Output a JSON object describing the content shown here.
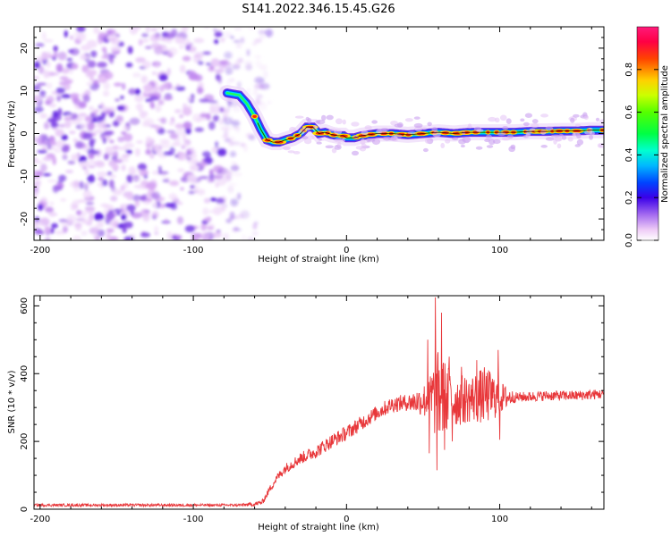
{
  "figure": {
    "title": "S141.2022.346.15.45.G26"
  },
  "chart_data": [
    {
      "type": "heatmap",
      "name": "spectrogram",
      "xlabel": "Height of straight line (km)",
      "ylabel": "Frequency (Hz)",
      "xlim": [
        -204,
        168
      ],
      "ylim": [
        -25,
        25
      ],
      "x_ticks": [
        -200,
        -100,
        0,
        100
      ],
      "y_ticks": [
        -20,
        -10,
        0,
        10,
        20
      ],
      "noise_region_x": [
        -204,
        -70
      ],
      "ridge": {
        "description_points_x": [
          -78,
          -70,
          -65,
          -60,
          -56,
          -52,
          -48,
          -44,
          -40,
          -35,
          -30,
          -26,
          -22,
          -18,
          -14,
          -10,
          -6,
          -2,
          0,
          5,
          10,
          20,
          30,
          40,
          50,
          60,
          70,
          80,
          90,
          100,
          110,
          120,
          130,
          140,
          150,
          160,
          168
        ],
        "description_points_y": [
          9.5,
          9,
          7,
          4,
          1,
          -1.5,
          -2,
          -2,
          -1.5,
          -1,
          0,
          1.5,
          1.5,
          0,
          0.3,
          -0.2,
          -0.5,
          -0.5,
          -1,
          -1,
          -0.5,
          0,
          0,
          -0.3,
          0,
          0.3,
          0,
          0.3,
          0.3,
          0.3,
          0.3,
          0.5,
          0.5,
          0.6,
          0.6,
          0.8,
          0.8
        ]
      },
      "colorbar": {
        "label": "Normalized spectral amplitude",
        "range": [
          0,
          1
        ],
        "ticks": [
          "0.0",
          "0.2",
          "0.4",
          "0.6",
          "0.8"
        ],
        "tick_values": [
          0,
          0.2,
          0.4,
          0.6,
          0.8
        ]
      }
    },
    {
      "type": "line",
      "name": "snr",
      "xlabel": "Height of straight line (km)",
      "ylabel": "SNR (10 * v/v)",
      "xlim": [
        -204,
        168
      ],
      "ylim": [
        0,
        630
      ],
      "x_ticks": [
        -200,
        -100,
        0,
        100
      ],
      "y_ticks": [
        0,
        200,
        400,
        600
      ],
      "color": "#e8373a",
      "envelope_x": [
        -204,
        -70,
        -60,
        -55,
        -50,
        -45,
        -40,
        -35,
        -30,
        -20,
        -10,
        0,
        10,
        20,
        30,
        40,
        50,
        60,
        70,
        80,
        90,
        100,
        110,
        120,
        130,
        140,
        150,
        160,
        168
      ],
      "envelope_y": [
        12,
        12,
        15,
        20,
        60,
        95,
        120,
        135,
        150,
        170,
        200,
        225,
        255,
        285,
        310,
        315,
        320,
        330,
        320,
        325,
        335,
        330,
        330,
        332,
        335,
        335,
        335,
        338,
        340
      ],
      "noise_amp_x": [
        -204,
        -70,
        -55,
        -40,
        -20,
        0,
        20,
        40,
        50,
        55,
        60,
        70,
        80,
        90,
        95,
        100,
        110,
        130,
        168
      ],
      "noise_amp_y": [
        4,
        4,
        8,
        15,
        20,
        22,
        22,
        25,
        45,
        90,
        140,
        80,
        70,
        85,
        75,
        50,
        15,
        15,
        15
      ],
      "peaks": [
        {
          "x": 58,
          "y": 625
        },
        {
          "x": 59,
          "y": 115
        },
        {
          "x": 62,
          "y": 580
        },
        {
          "x": 64,
          "y": 175
        },
        {
          "x": 53,
          "y": 500
        },
        {
          "x": 54,
          "y": 165
        },
        {
          "x": 67,
          "y": 450
        },
        {
          "x": 69,
          "y": 200
        },
        {
          "x": 75,
          "y": 420
        },
        {
          "x": 85,
          "y": 440
        },
        {
          "x": 99,
          "y": 470
        },
        {
          "x": 100,
          "y": 205
        }
      ]
    }
  ]
}
